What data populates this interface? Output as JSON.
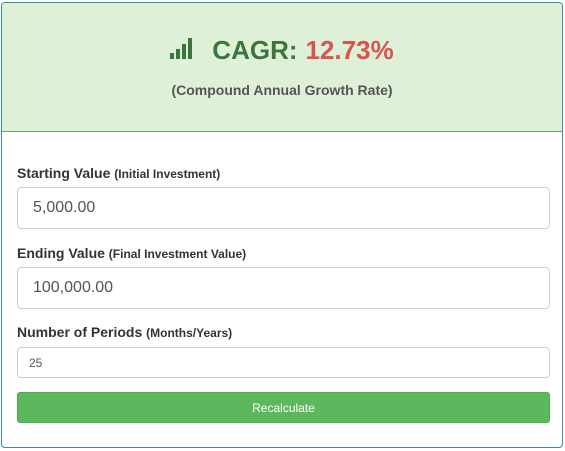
{
  "header": {
    "icon": "signal-bars-icon",
    "title_label": "CAGR:",
    "title_value": "12.73%",
    "subtitle": "(Compound Annual Growth Rate)",
    "colors": {
      "background": "#dff0d8",
      "title": "#3c763d",
      "value": "#d9534f"
    }
  },
  "fields": {
    "starting": {
      "label": "Starting Value",
      "hint": "(Initial Investment)",
      "value": "5,000.00"
    },
    "ending": {
      "label": "Ending Value",
      "hint": "(Final Investment Value)",
      "value": "100,000.00"
    },
    "periods": {
      "label": "Number of Periods",
      "hint": "(Months/Years)",
      "value": "25"
    }
  },
  "button": {
    "label": "Recalculate",
    "color": "#5cb85c"
  }
}
